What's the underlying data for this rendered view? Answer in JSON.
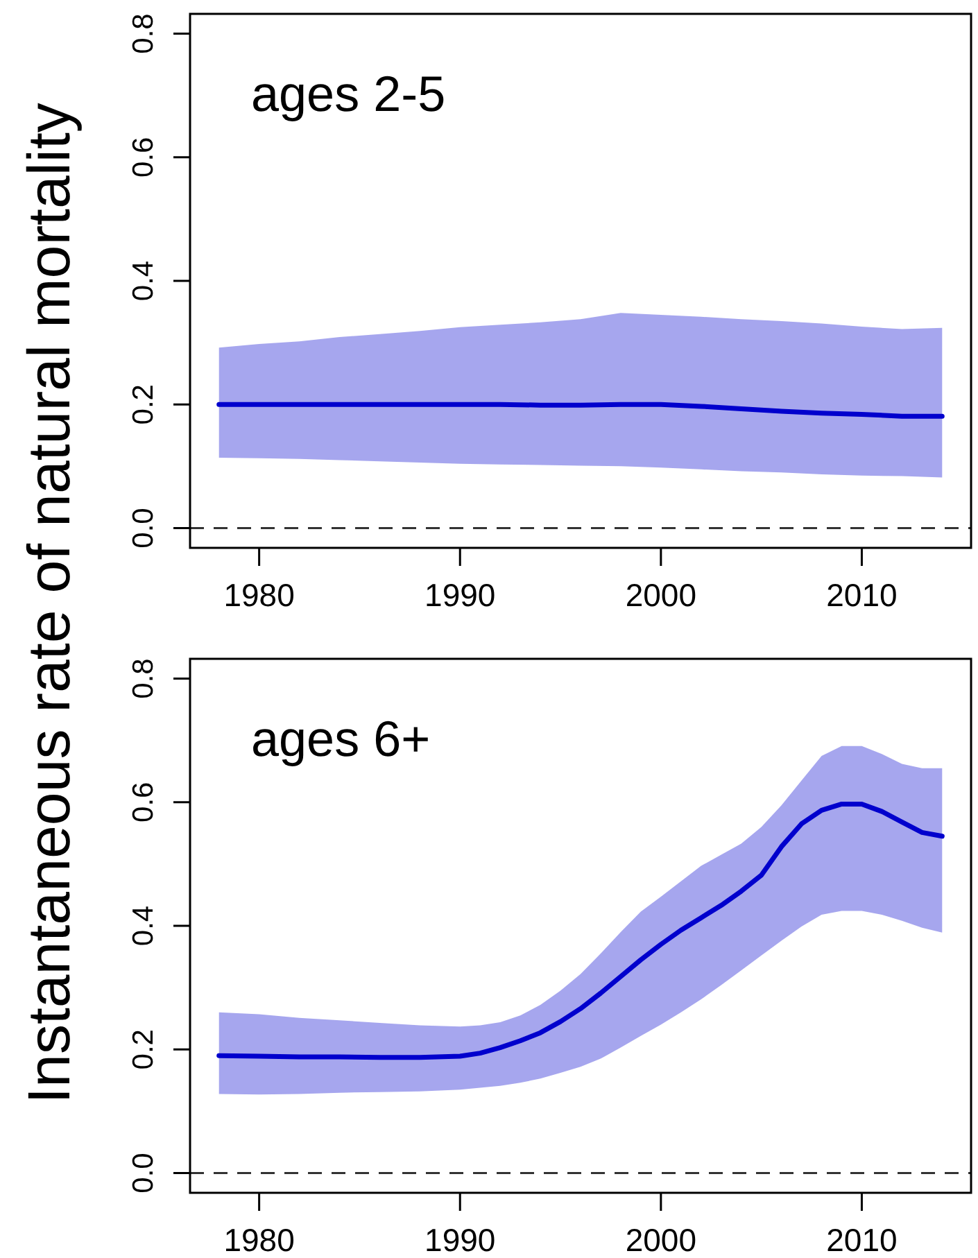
{
  "chart_data": [
    {
      "type": "line",
      "title": "ages 2-5",
      "ylabel": "Instantaneous rate of natural mortality",
      "x": [
        1978,
        1980,
        1982,
        1984,
        1986,
        1988,
        1990,
        1992,
        1994,
        1996,
        1998,
        2000,
        2002,
        2004,
        2006,
        2008,
        2010,
        2012,
        2014
      ],
      "series": [
        {
          "color": "#0000cd",
          "values": [
            0.2,
            0.2,
            0.2,
            0.2,
            0.2,
            0.2,
            0.2,
            0.2,
            0.199,
            0.199,
            0.2,
            0.2,
            0.197,
            0.193,
            0.189,
            0.186,
            0.184,
            0.181,
            0.181
          ],
          "upper": [
            0.292,
            0.298,
            0.302,
            0.309,
            0.314,
            0.319,
            0.325,
            0.329,
            0.333,
            0.338,
            0.348,
            0.345,
            0.342,
            0.338,
            0.335,
            0.331,
            0.326,
            0.322,
            0.324
          ],
          "lower": [
            0.114,
            0.113,
            0.112,
            0.11,
            0.108,
            0.106,
            0.104,
            0.103,
            0.102,
            0.101,
            0.1,
            0.098,
            0.095,
            0.092,
            0.09,
            0.087,
            0.085,
            0.084,
            0.082
          ]
        }
      ],
      "xlim": [
        1976.56,
        2015.44
      ],
      "ylim": [
        -0.032,
        0.832
      ],
      "xticks": [
        1980,
        1990,
        2000,
        2010
      ],
      "yticks": [
        {
          "value": 0,
          "label": "0.0"
        },
        0.2,
        0.4,
        0.6,
        0.8
      ],
      "ref_lines": [
        {
          "axis": "y",
          "value": 0,
          "color": "#333333",
          "line_style": "dashed"
        }
      ]
    },
    {
      "type": "line",
      "title": "ages 6+",
      "x": [
        1978,
        1980,
        1982,
        1984,
        1986,
        1988,
        1990,
        1991,
        1992,
        1993,
        1994,
        1995,
        1996,
        1997,
        1998,
        1999,
        2000,
        2001,
        2002,
        2003,
        2004,
        2005,
        2006,
        2007,
        2008,
        2009,
        2010,
        2011,
        2012,
        2013,
        2014
      ],
      "series": [
        {
          "color": "#0000cd",
          "values": [
            0.19,
            0.189,
            0.188,
            0.188,
            0.187,
            0.187,
            0.189,
            0.194,
            0.203,
            0.214,
            0.227,
            0.245,
            0.266,
            0.291,
            0.318,
            0.345,
            0.37,
            0.393,
            0.413,
            0.433,
            0.456,
            0.482,
            0.528,
            0.565,
            0.587,
            0.597,
            0.597,
            0.585,
            0.568,
            0.551,
            0.545
          ],
          "upper": [
            0.26,
            0.257,
            0.251,
            0.247,
            0.243,
            0.239,
            0.237,
            0.239,
            0.244,
            0.255,
            0.272,
            0.295,
            0.322,
            0.355,
            0.39,
            0.423,
            0.447,
            0.472,
            0.497,
            0.515,
            0.533,
            0.56,
            0.595,
            0.635,
            0.675,
            0.691,
            0.691,
            0.678,
            0.662,
            0.655,
            0.655
          ],
          "lower": [
            0.128,
            0.127,
            0.128,
            0.13,
            0.131,
            0.132,
            0.135,
            0.138,
            0.141,
            0.146,
            0.153,
            0.162,
            0.172,
            0.185,
            0.203,
            0.222,
            0.24,
            0.26,
            0.281,
            0.304,
            0.328,
            0.352,
            0.376,
            0.399,
            0.418,
            0.424,
            0.424,
            0.418,
            0.408,
            0.397,
            0.389
          ]
        }
      ],
      "xlim": [
        1976.56,
        2015.44
      ],
      "ylim": [
        -0.032,
        0.832
      ],
      "xticks": [
        1980,
        1990,
        2000,
        2010
      ],
      "yticks": [
        {
          "value": 0,
          "label": "0.0"
        },
        0.2,
        0.4,
        0.6,
        0.8
      ],
      "ref_lines": [
        {
          "axis": "y",
          "value": 0,
          "color": "#333333",
          "line_style": "dashed"
        }
      ]
    }
  ]
}
